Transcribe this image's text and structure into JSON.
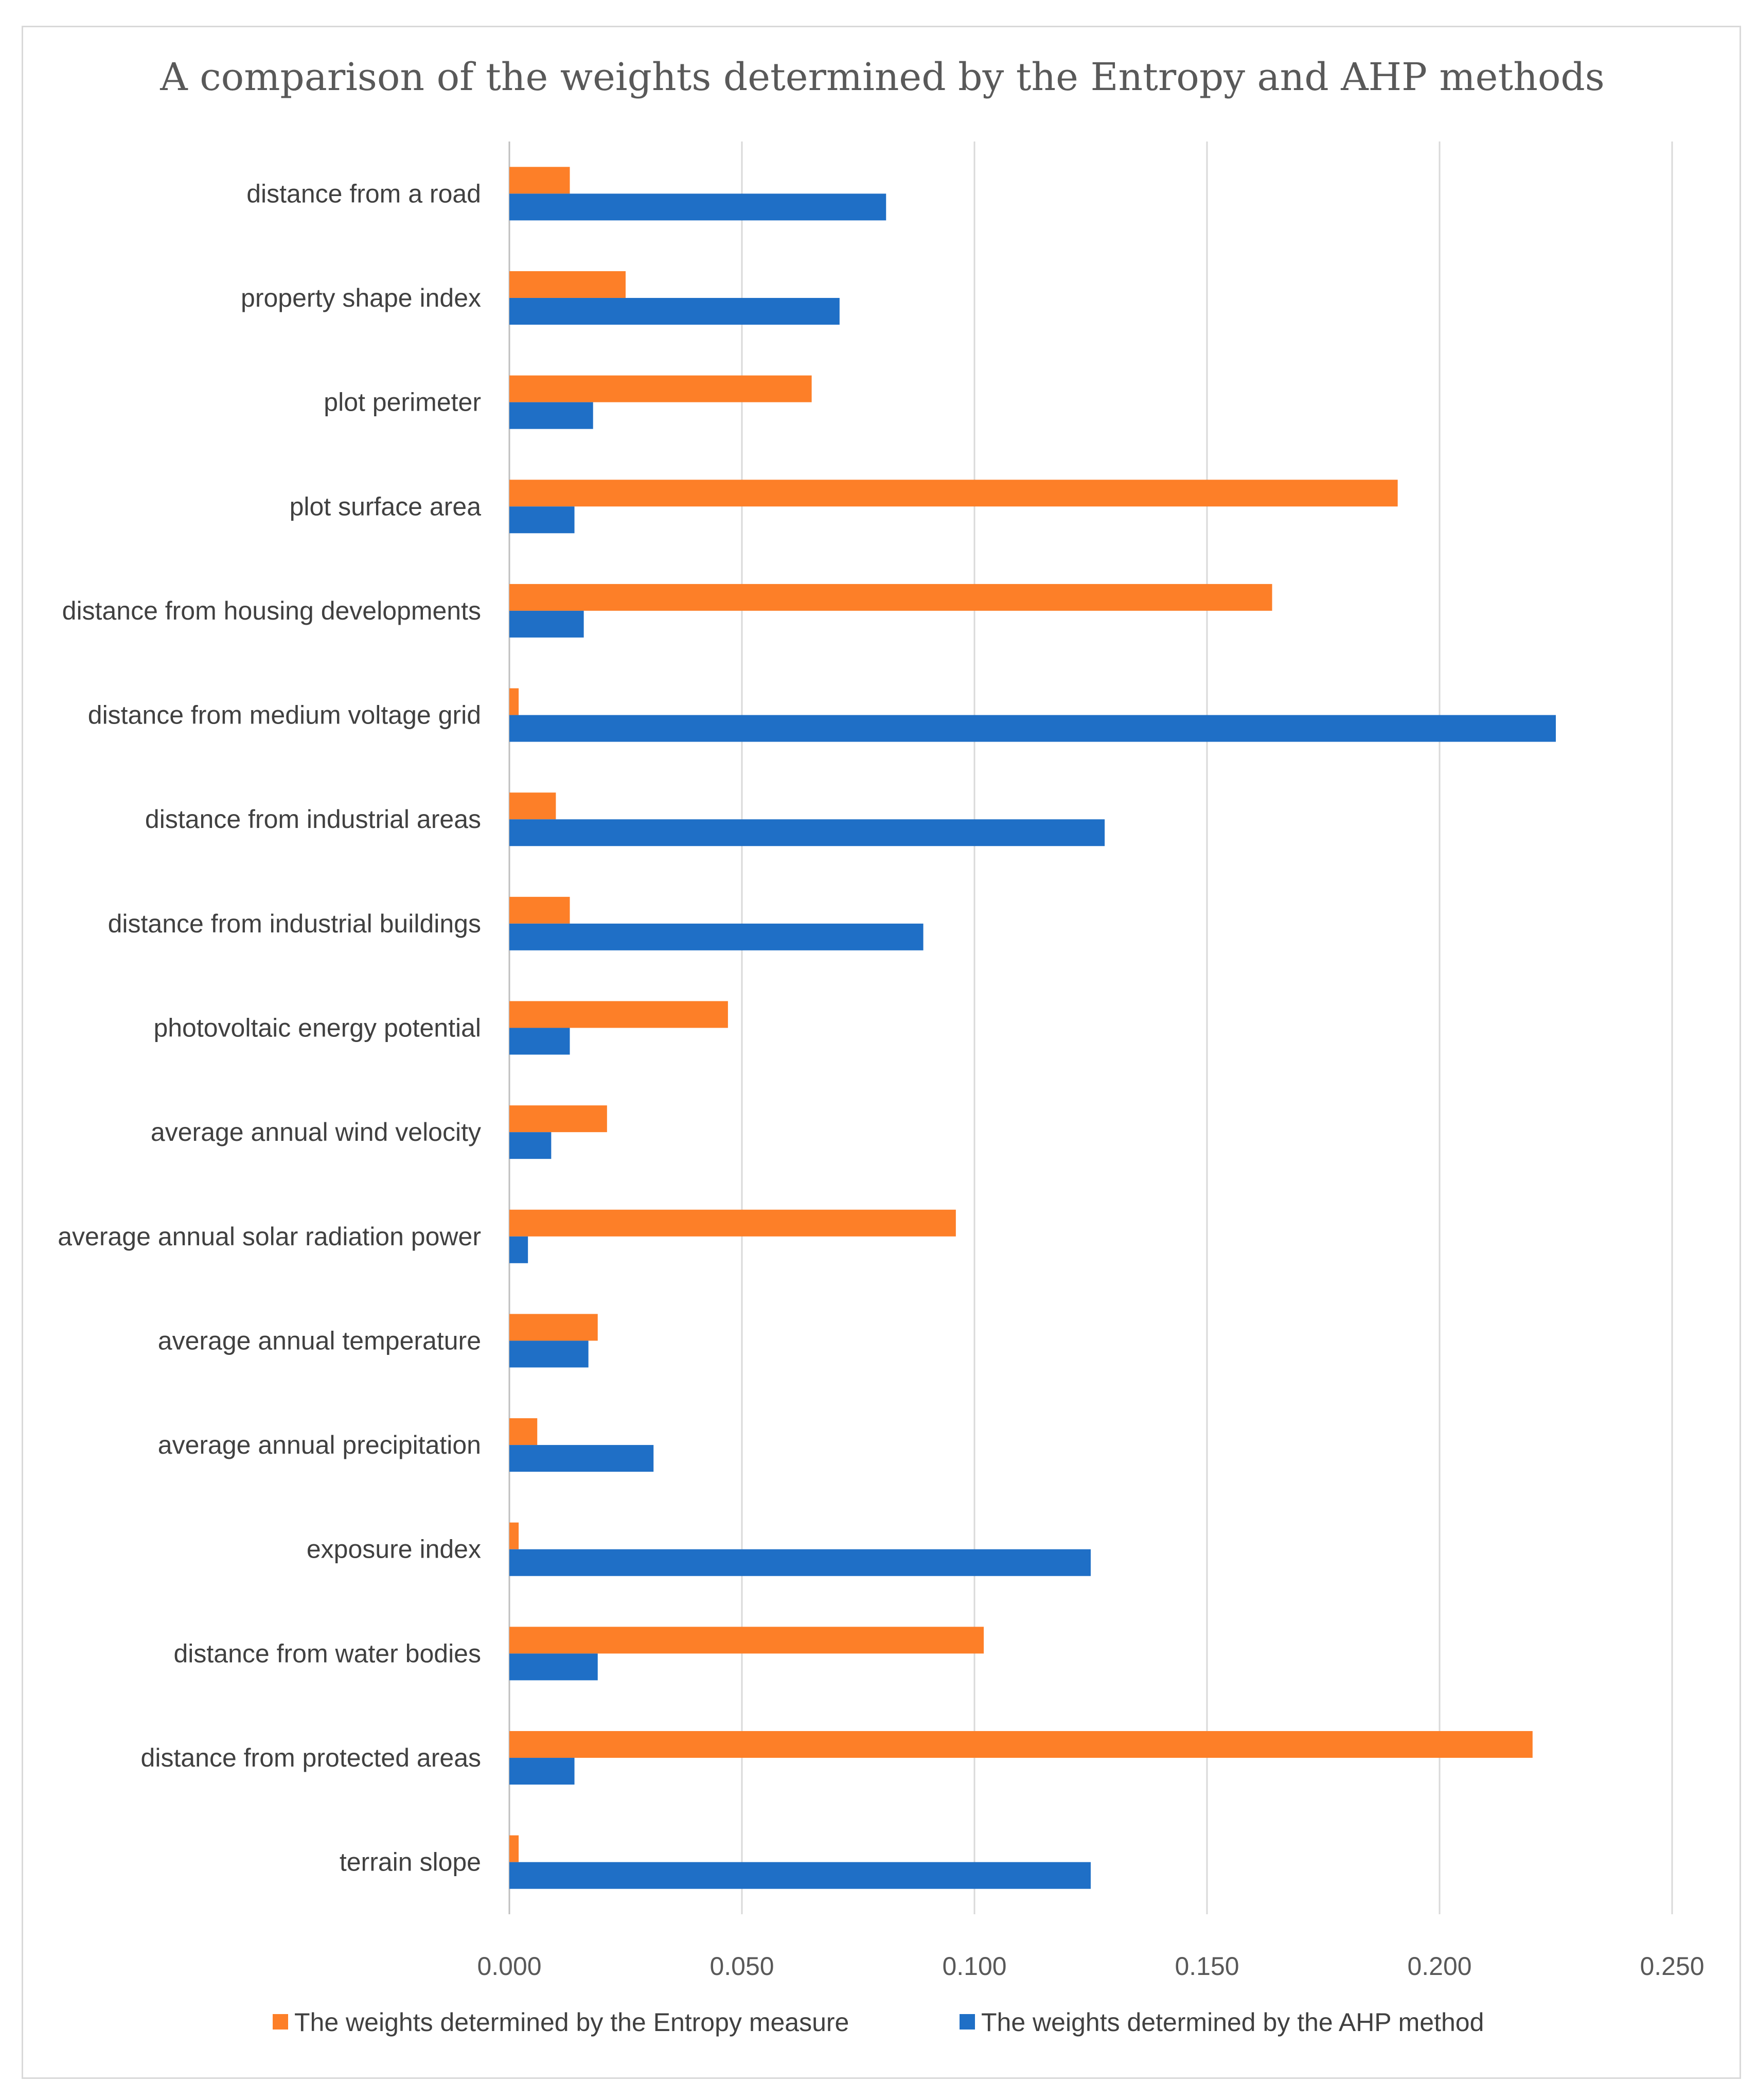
{
  "chart_data": {
    "type": "bar",
    "orientation": "horizontal",
    "title": "A comparison of the weights determined by the Entropy and AHP methods",
    "categories": [
      "distance from a road",
      "property shape index",
      "plot perimeter",
      "plot surface area",
      "distance from housing developments",
      "distance from medium voltage grid",
      "distance from industrial areas",
      "distance from industrial buildings",
      "photovoltaic energy potential",
      "average annual wind velocity",
      "average annual solar radiation power",
      "average annual temperature",
      "average annual precipitation",
      "exposure index",
      "distance from water bodies",
      "distance from protected areas",
      "terrain slope"
    ],
    "series": [
      {
        "name": "The weights determined by the Entropy measure",
        "color": "#fd7f28",
        "values": [
          0.013,
          0.025,
          0.065,
          0.191,
          0.164,
          0.002,
          0.01,
          0.013,
          0.047,
          0.021,
          0.096,
          0.019,
          0.006,
          0.002,
          0.102,
          0.22,
          0.002
        ]
      },
      {
        "name": "The weights determined by the AHP method",
        "color": "#1f6fc6",
        "values": [
          0.081,
          0.071,
          0.018,
          0.014,
          0.016,
          0.225,
          0.128,
          0.089,
          0.013,
          0.009,
          0.004,
          0.017,
          0.031,
          0.125,
          0.019,
          0.014,
          0.125
        ]
      }
    ],
    "xlim": [
      0,
      0.25
    ],
    "xticks": [
      "0.000",
      "0.050",
      "0.100",
      "0.150",
      "0.200",
      "0.250"
    ],
    "grid": true,
    "legend_position": "bottom"
  }
}
